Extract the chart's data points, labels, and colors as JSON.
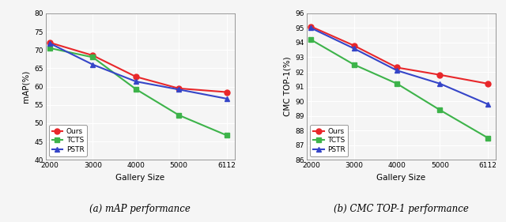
{
  "x": [
    2000,
    3000,
    4000,
    5000,
    6112
  ],
  "map": {
    "Ours": [
      72.0,
      68.5,
      62.7,
      59.5,
      58.5
    ],
    "TCTS": [
      70.5,
      68.0,
      59.3,
      52.2,
      46.7
    ],
    "PSTR": [
      71.8,
      66.0,
      61.4,
      59.2,
      56.7
    ]
  },
  "cmc": {
    "Ours": [
      95.1,
      93.8,
      92.3,
      91.8,
      91.2
    ],
    "TCTS": [
      94.2,
      92.5,
      91.2,
      89.4,
      87.5
    ],
    "PSTR": [
      95.0,
      93.6,
      92.1,
      91.2,
      89.8
    ]
  },
  "colors": {
    "Ours": "#e8272a",
    "TCTS": "#3db34a",
    "PSTR": "#3545c8"
  },
  "markers": {
    "Ours": "o",
    "TCTS": "s",
    "PSTR": "^"
  },
  "map_ylim": [
    40,
    80
  ],
  "map_yticks": [
    40,
    45,
    50,
    55,
    60,
    65,
    70,
    75,
    80
  ],
  "cmc_ylim": [
    86,
    96
  ],
  "cmc_yticks": [
    86,
    87,
    88,
    89,
    90,
    91,
    92,
    93,
    94,
    95,
    96
  ],
  "xticks": [
    2000,
    3000,
    4000,
    5000,
    6112
  ],
  "xlabel": "Gallery Size",
  "map_ylabel": "mAP(%)",
  "cmc_ylabel": "CMC TOP-1(%)",
  "caption_a": "(a) mAP performance",
  "caption_b": "(b) CMC TOP-1 performance",
  "bg_color": "#f5f5f5",
  "grid_color": "#ffffff",
  "linewidth": 1.5,
  "markersize": 5
}
